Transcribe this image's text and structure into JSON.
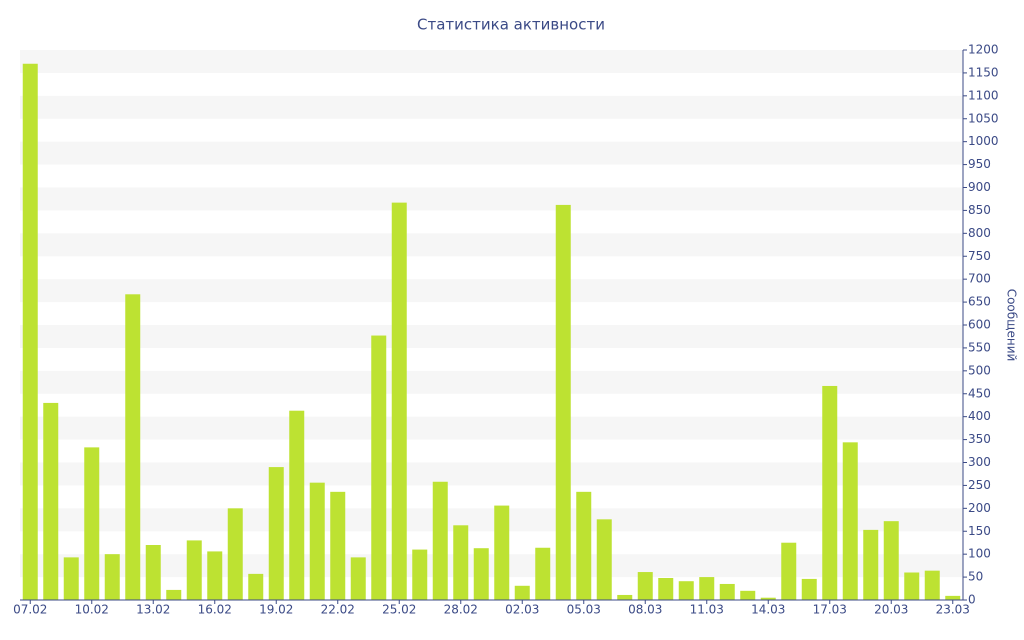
{
  "chart_data": {
    "type": "bar",
    "title": "Статистика активности",
    "y_label": "Сообщений",
    "categories": [
      "07.02",
      null,
      null,
      "10.02",
      null,
      null,
      "13.02",
      null,
      null,
      "16.02",
      null,
      null,
      "19.02",
      null,
      null,
      "22.02",
      null,
      null,
      "25.02",
      null,
      null,
      "28.02",
      null,
      null,
      "02.03",
      null,
      null,
      "05.03",
      null,
      null,
      "08.03",
      null,
      null,
      "11.03",
      null,
      null,
      "14.03",
      null,
      null,
      "17.03",
      null,
      null,
      "20.03",
      null,
      null,
      "23.03"
    ],
    "values": [
      1170,
      430,
      93,
      333,
      100,
      667,
      120,
      22,
      130,
      106,
      200,
      57,
      290,
      413,
      256,
      236,
      93,
      577,
      867,
      110,
      258,
      163,
      113,
      206,
      31,
      114,
      862,
      236,
      176,
      11,
      61,
      48,
      41,
      50,
      35,
      20,
      5,
      125,
      46,
      467,
      344,
      153,
      172,
      60,
      64,
      9
    ],
    "color": "#bde232",
    "ylim": [
      0,
      1200
    ],
    "yticks": [
      0,
      50,
      100,
      150,
      200,
      250,
      300,
      350,
      400,
      450,
      500,
      550,
      600,
      650,
      700,
      750,
      800,
      850,
      900,
      950,
      1000,
      1050,
      1100,
      1150,
      1200
    ],
    "grid": true,
    "y_axis_side": "right"
  }
}
